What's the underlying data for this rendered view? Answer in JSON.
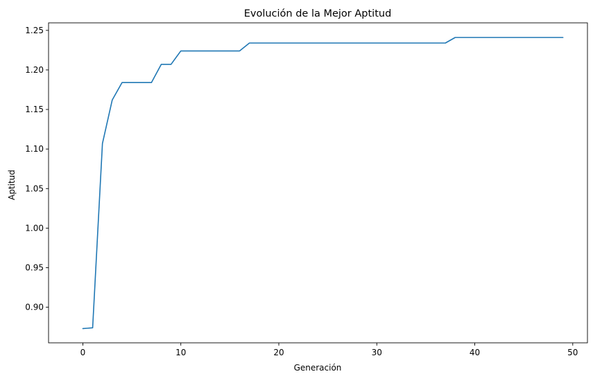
{
  "chart_data": {
    "type": "line",
    "title": "Evolución de la Mejor Aptitud",
    "xlabel": "Generación",
    "ylabel": "Aptitud",
    "xlim": [
      -3.5,
      51.5
    ],
    "ylim": [
      0.855,
      1.2595
    ],
    "xticks": [
      0,
      10,
      20,
      30,
      40,
      50
    ],
    "xtick_labels": [
      "0",
      "10",
      "20",
      "30",
      "40",
      "50"
    ],
    "yticks": [
      0.9,
      0.95,
      1.0,
      1.05,
      1.1,
      1.15,
      1.2,
      1.25
    ],
    "ytick_labels": [
      "0.90",
      "0.95",
      "1.00",
      "1.05",
      "1.10",
      "1.15",
      "1.20",
      "1.25"
    ],
    "grid": false,
    "line_color": "#1f77b4",
    "series": [
      {
        "x": [
          0,
          1,
          2,
          3,
          4,
          5,
          6,
          7,
          8,
          9,
          10,
          11,
          12,
          13,
          14,
          15,
          16,
          17,
          18,
          19,
          20,
          21,
          22,
          23,
          24,
          25,
          26,
          27,
          28,
          29,
          30,
          31,
          32,
          33,
          34,
          35,
          36,
          37,
          38,
          39,
          40,
          41,
          42,
          43,
          44,
          45,
          46,
          47,
          48,
          49
        ],
        "values": [
          0.873,
          0.874,
          1.107,
          1.162,
          1.184,
          1.184,
          1.184,
          1.184,
          1.207,
          1.207,
          1.224,
          1.224,
          1.224,
          1.224,
          1.224,
          1.224,
          1.224,
          1.234,
          1.234,
          1.234,
          1.234,
          1.234,
          1.234,
          1.234,
          1.234,
          1.234,
          1.234,
          1.234,
          1.234,
          1.234,
          1.234,
          1.234,
          1.234,
          1.234,
          1.234,
          1.234,
          1.234,
          1.234,
          1.241,
          1.241,
          1.241,
          1.241,
          1.241,
          1.241,
          1.241,
          1.241,
          1.241,
          1.241,
          1.241,
          1.241
        ]
      }
    ]
  }
}
